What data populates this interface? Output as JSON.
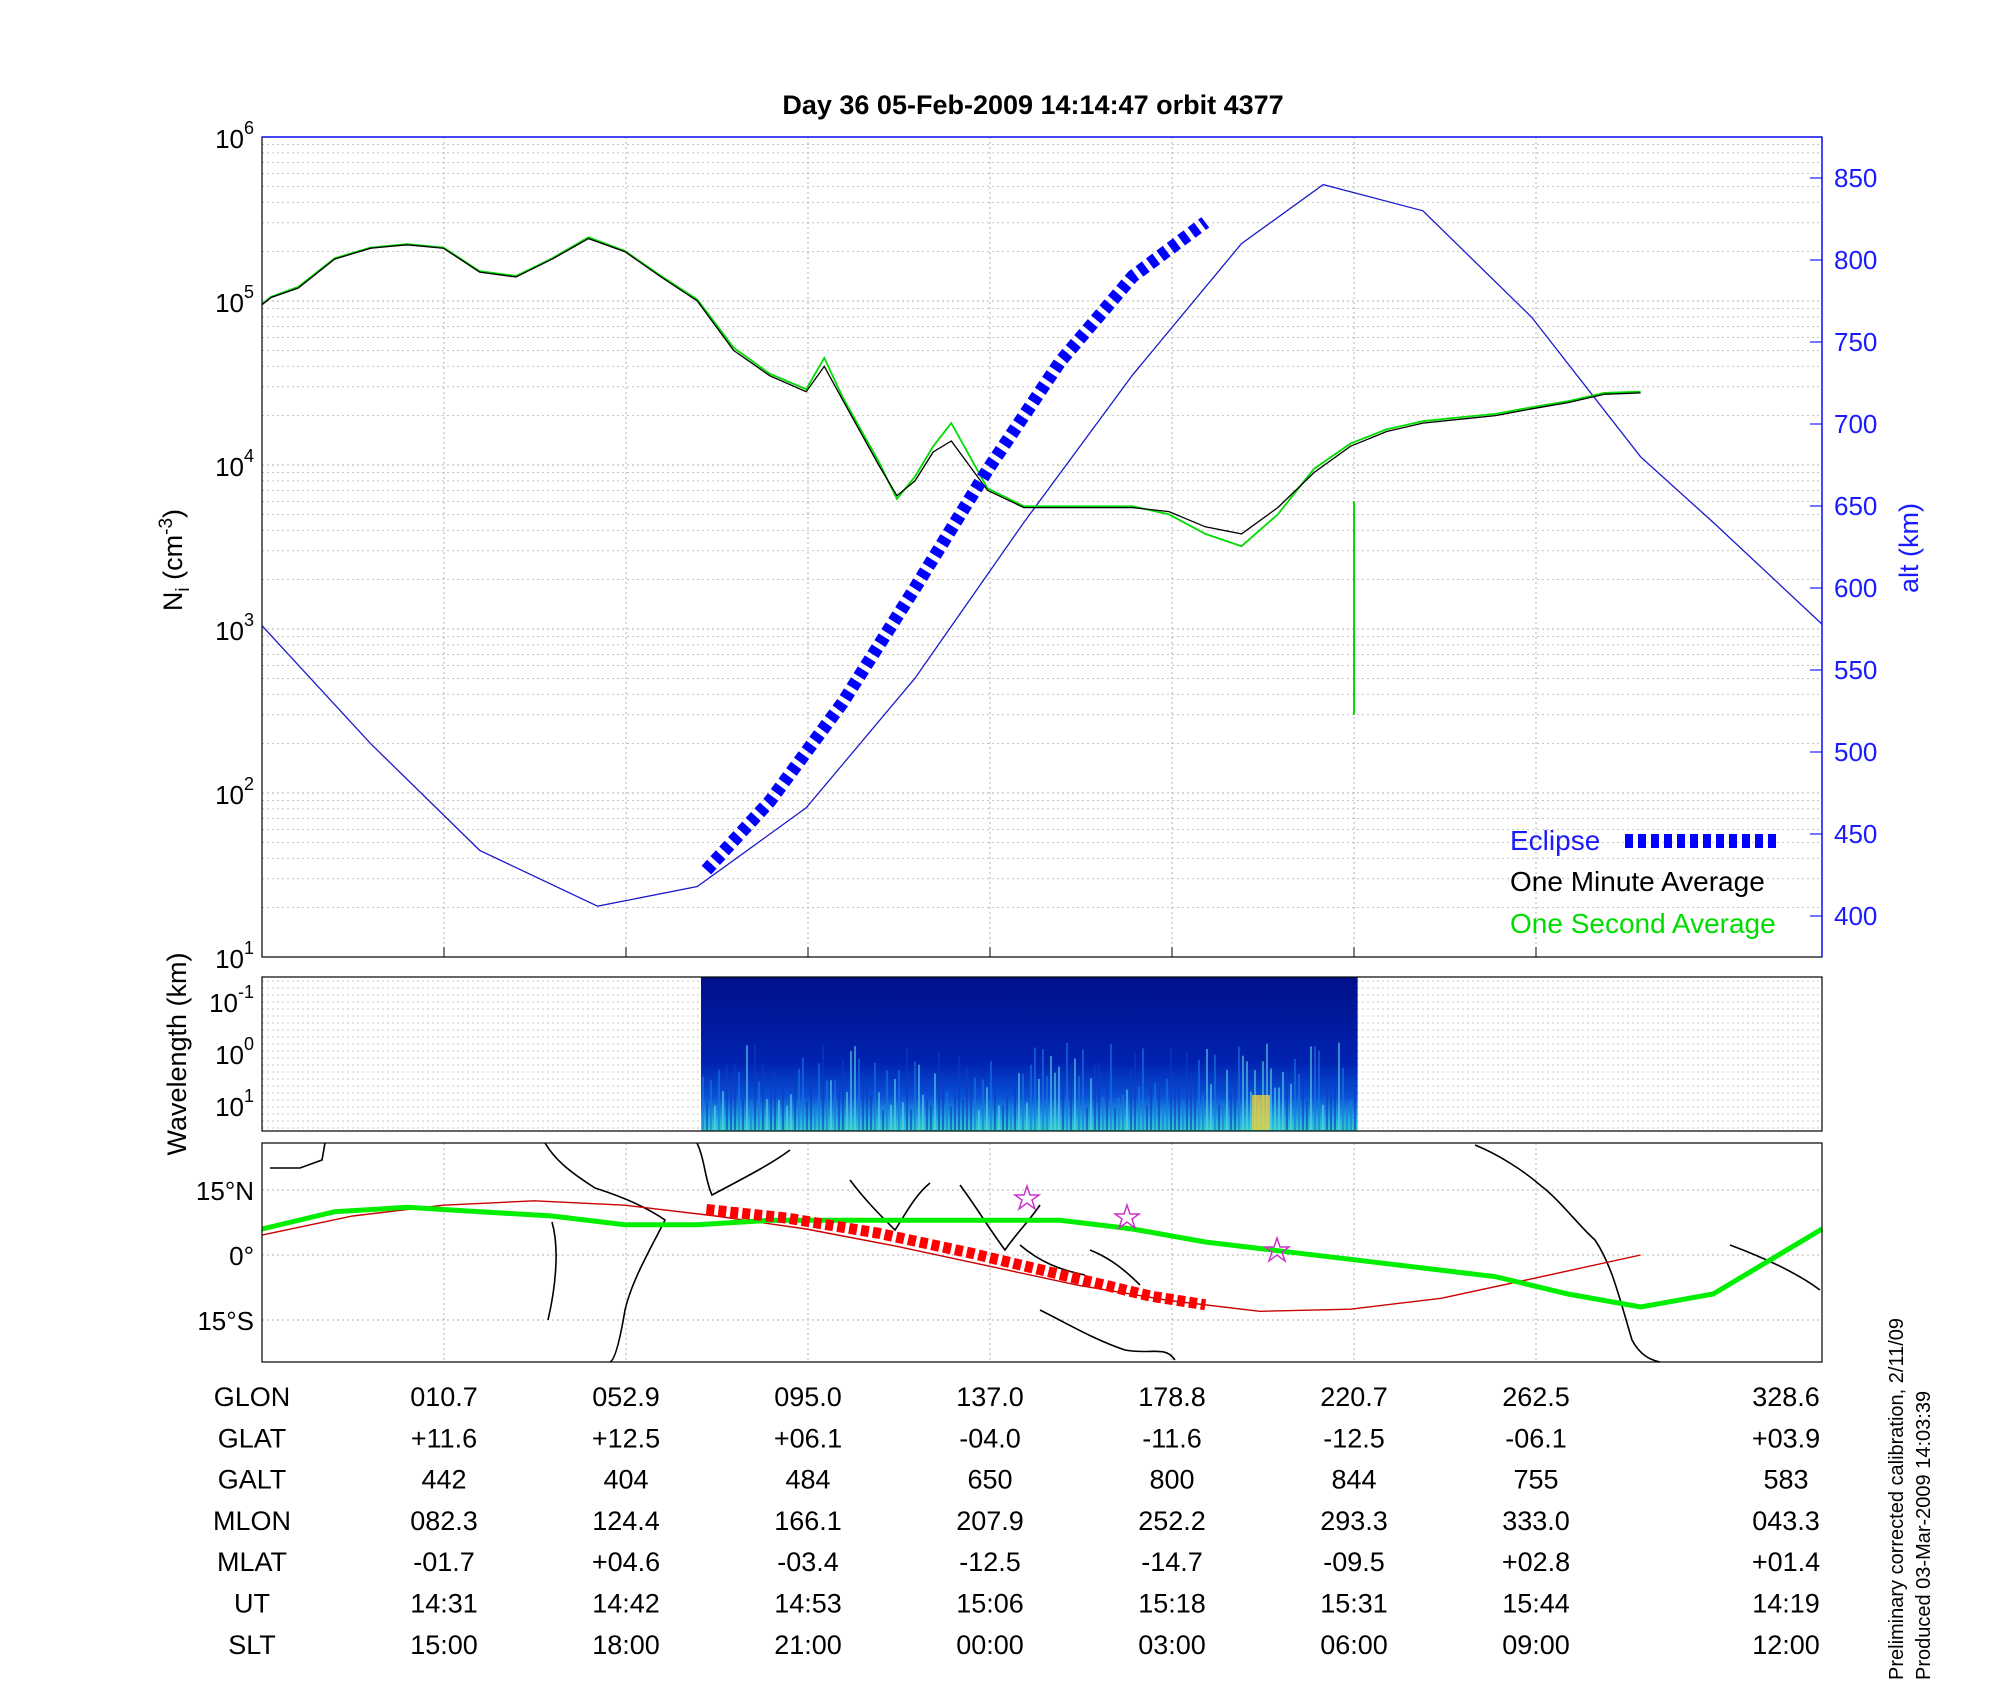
{
  "chart_data": [
    {
      "type": "line",
      "title": "Day 36  05-Feb-2009 14:14:47   orbit 4377",
      "ylabel": "N_i (cm^-3)",
      "ylabel_main": "N",
      "ylabel_sub": "i",
      "ylabel_rest": " (cm",
      "ylabel_sup": "-3",
      "ylabel_close": ")",
      "y_scale": "log",
      "ylim": [
        10,
        1000000
      ],
      "y_ticks": [
        {
          "base": "10",
          "exp": "1",
          "value": 10
        },
        {
          "base": "10",
          "exp": "2",
          "value": 100
        },
        {
          "base": "10",
          "exp": "3",
          "value": 1000
        },
        {
          "base": "10",
          "exp": "4",
          "value": 10000
        },
        {
          "base": "10",
          "exp": "5",
          "value": 100000
        },
        {
          "base": "10",
          "exp": "6",
          "value": 1000000
        }
      ],
      "y2label": "alt (km)",
      "y2lim": [
        375,
        875
      ],
      "y2_ticks": [
        "400",
        "450",
        "500",
        "550",
        "600",
        "650",
        "700",
        "750",
        "800",
        "850"
      ],
      "xlim": [
        0,
        8.6
      ],
      "grid": true,
      "series": [
        {
          "name": "Eclipse",
          "color": "#0000ff",
          "axis": "alt",
          "style": "thick-dashed",
          "x": [
            2.45,
            2.8,
            3.2,
            3.6,
            4.0,
            4.4,
            4.8,
            5.2
          ],
          "values": [
            428,
            470,
            530,
            600,
            672,
            738,
            790,
            823
          ]
        },
        {
          "name": "One Minute Average",
          "color": "#000000",
          "axis": "Ni",
          "style": "line",
          "x": [
            0,
            0.05,
            0.2,
            0.4,
            0.6,
            0.8,
            1.0,
            1.2,
            1.4,
            1.6,
            1.8,
            2.0,
            2.2,
            2.4,
            2.6,
            2.8,
            3.0,
            3.1,
            3.2,
            3.4,
            3.5,
            3.6,
            3.7,
            3.8,
            4.0,
            4.2,
            4.4,
            4.6,
            4.8,
            5.0,
            5.2,
            5.4,
            5.6,
            5.8,
            6.0,
            6.2,
            6.4,
            6.6,
            6.8,
            7.0,
            7.2,
            7.4,
            7.6
          ],
          "values": [
            95000,
            105000,
            120000,
            180000,
            210000,
            220000,
            210000,
            150000,
            140000,
            180000,
            240000,
            200000,
            140000,
            100000,
            50000,
            35000,
            28000,
            40000,
            25000,
            10000,
            6500,
            8000,
            12000,
            14000,
            7000,
            5500,
            5500,
            5500,
            5500,
            5200,
            4200,
            3800,
            5500,
            9000,
            13000,
            16000,
            18000,
            19000,
            20000,
            22000,
            24000,
            27000,
            27500
          ]
        },
        {
          "name": "One Second Average",
          "color": "#00dd00",
          "axis": "Ni",
          "style": "line",
          "x": [
            0,
            0.05,
            0.2,
            0.4,
            0.6,
            0.8,
            1.0,
            1.2,
            1.4,
            1.6,
            1.8,
            2.0,
            2.2,
            2.4,
            2.6,
            2.8,
            3.0,
            3.1,
            3.2,
            3.4,
            3.5,
            3.6,
            3.7,
            3.8,
            4.0,
            4.2,
            4.4,
            4.6,
            4.8,
            5.0,
            5.2,
            5.4,
            5.6,
            5.8,
            6.0,
            6.2,
            6.4,
            6.6,
            6.8,
            7.0,
            7.2,
            7.4,
            7.6
          ],
          "values": [
            96000,
            106000,
            122000,
            182000,
            212000,
            222000,
            212000,
            152000,
            142000,
            182000,
            245000,
            202000,
            142000,
            102000,
            52000,
            36000,
            29000,
            45000,
            26000,
            10500,
            6200,
            8500,
            13000,
            18000,
            7200,
            5600,
            5600,
            5600,
            5600,
            5000,
            3800,
            3200,
            5000,
            9500,
            13500,
            16500,
            18500,
            19500,
            20500,
            22500,
            24500,
            27500,
            28000
          ]
        },
        {
          "name": "alt",
          "color": "#1a1acc",
          "axis": "alt",
          "style": "thin",
          "x": [
            0,
            0.6,
            1.2,
            1.85,
            2.4,
            3.0,
            3.6,
            4.2,
            4.8,
            5.4,
            5.85,
            6.4,
            7.0,
            7.6,
            8.0,
            8.6
          ],
          "values": [
            577,
            505,
            440,
            406,
            418,
            466,
            545,
            640,
            730,
            810,
            846,
            830,
            765,
            680,
            640,
            578
          ]
        }
      ],
      "legend": {
        "placement": "lower-right",
        "entries": [
          {
            "label": "Eclipse",
            "color": "#1a1aff"
          },
          {
            "label": "One Minute Average",
            "color": "#000000"
          },
          {
            "label": "One Second Average",
            "color": "#00dd00"
          }
        ]
      }
    },
    {
      "type": "heatmap",
      "ylabel": "Wavelength (km)",
      "y_ticks": [
        {
          "base": "10",
          "exp": "-1"
        },
        {
          "base": "10",
          "exp": "0"
        },
        {
          "base": "10",
          "exp": "1"
        }
      ],
      "x_extent": [
        2.42,
        6.04
      ]
    },
    {
      "type": "line",
      "kind": "map-track",
      "y_ticks": [
        "15°N",
        "0°",
        "15°S"
      ],
      "series": [
        {
          "name": "magnetic-equator",
          "color": "#00ee00",
          "x": [
            0,
            0.4,
            0.8,
            1.2,
            1.6,
            2.0,
            2.4,
            2.8,
            3.2,
            3.6,
            4.0,
            4.4,
            4.8,
            5.2,
            5.6,
            6.0,
            6.4,
            6.8,
            7.2,
            7.6,
            8.0,
            8.4,
            8.6
          ],
          "values": [
            6,
            10,
            11,
            10,
            9,
            7,
            7,
            8,
            8,
            8,
            8,
            8,
            6,
            3,
            1,
            -1,
            -3,
            -5,
            -9,
            -12,
            -9,
            1,
            6
          ]
        },
        {
          "name": "orbit-track",
          "color": "#cc0000",
          "x": [
            0,
            0.5,
            1.0,
            1.5,
            2.0,
            2.5,
            3.0,
            3.5,
            4.0,
            4.5,
            5.0,
            5.5,
            6.0,
            6.5,
            7.0,
            7.6
          ],
          "values": [
            4.6,
            9.0,
            11.5,
            12.5,
            11.5,
            9.0,
            6.0,
            2.0,
            -2.5,
            -7.0,
            -10.5,
            -13.0,
            -12.5,
            -10.0,
            -5.5,
            0.0
          ]
        },
        {
          "name": "eclipse-track",
          "color": "#ff0000",
          "x": [
            2.45,
            2.9,
            3.4,
            3.9,
            4.4,
            4.9,
            5.2
          ],
          "values": [
            10.5,
            8.5,
            5.0,
            0.5,
            -4.5,
            -9.5,
            -11.5
          ]
        }
      ]
    }
  ],
  "orbit_table": {
    "rows": [
      {
        "label": "GLON",
        "values": [
          "010.7",
          "052.9",
          "095.0",
          "137.0",
          "178.8",
          "220.7",
          "262.5",
          "328.6"
        ]
      },
      {
        "label": "GLAT",
        "values": [
          "+11.6",
          "+12.5",
          "+06.1",
          "-04.0",
          "-11.6",
          "-12.5",
          "-06.1",
          "+03.9"
        ]
      },
      {
        "label": "GALT",
        "values": [
          "442",
          "404",
          "484",
          "650",
          "800",
          "844",
          "755",
          "583"
        ]
      },
      {
        "label": "MLON",
        "values": [
          "082.3",
          "124.4",
          "166.1",
          "207.9",
          "252.2",
          "293.3",
          "333.0",
          "043.3"
        ]
      },
      {
        "label": "MLAT",
        "values": [
          "-01.7",
          "+04.6",
          "-03.4",
          "-12.5",
          "-14.7",
          "-09.5",
          "+02.8",
          "+01.4"
        ]
      },
      {
        "label": "UT",
        "values": [
          "14:31",
          "14:42",
          "14:53",
          "15:06",
          "15:18",
          "15:31",
          "15:44",
          "14:19"
        ]
      },
      {
        "label": "SLT",
        "values": [
          "15:00",
          "18:00",
          "21:00",
          "00:00",
          "03:00",
          "06:00",
          "09:00",
          "12:00"
        ]
      }
    ]
  },
  "notes": {
    "line1": "Preliminary corrected calibration, 2/11/09",
    "line2": "Produced 03-Mar-2009 14:03:39"
  }
}
